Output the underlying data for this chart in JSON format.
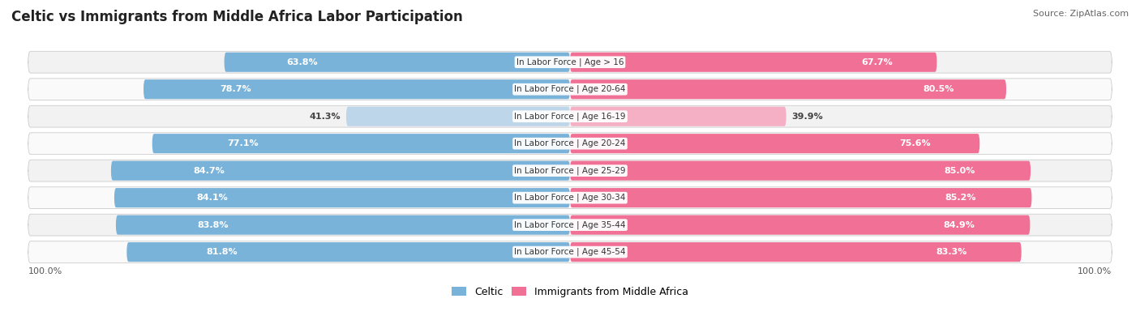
{
  "title": "Celtic vs Immigrants from Middle Africa Labor Participation",
  "source": "Source: ZipAtlas.com",
  "categories": [
    "In Labor Force | Age > 16",
    "In Labor Force | Age 20-64",
    "In Labor Force | Age 16-19",
    "In Labor Force | Age 20-24",
    "In Labor Force | Age 25-29",
    "In Labor Force | Age 30-34",
    "In Labor Force | Age 35-44",
    "In Labor Force | Age 45-54"
  ],
  "celtic_values": [
    63.8,
    78.7,
    41.3,
    77.1,
    84.7,
    84.1,
    83.8,
    81.8
  ],
  "immigrant_values": [
    67.7,
    80.5,
    39.9,
    75.6,
    85.0,
    85.2,
    84.9,
    83.3
  ],
  "celtic_color": "#7ab3d9",
  "celtic_color_light": "#bdd6ea",
  "immigrant_color": "#f07096",
  "immigrant_color_light": "#f5b0c5",
  "row_bg_odd": "#f2f2f2",
  "row_bg_even": "#fafafa",
  "max_value": 100.0,
  "title_fontsize": 12,
  "legend_fontsize": 9,
  "bar_label_fontsize": 8,
  "cat_label_fontsize": 7.5
}
